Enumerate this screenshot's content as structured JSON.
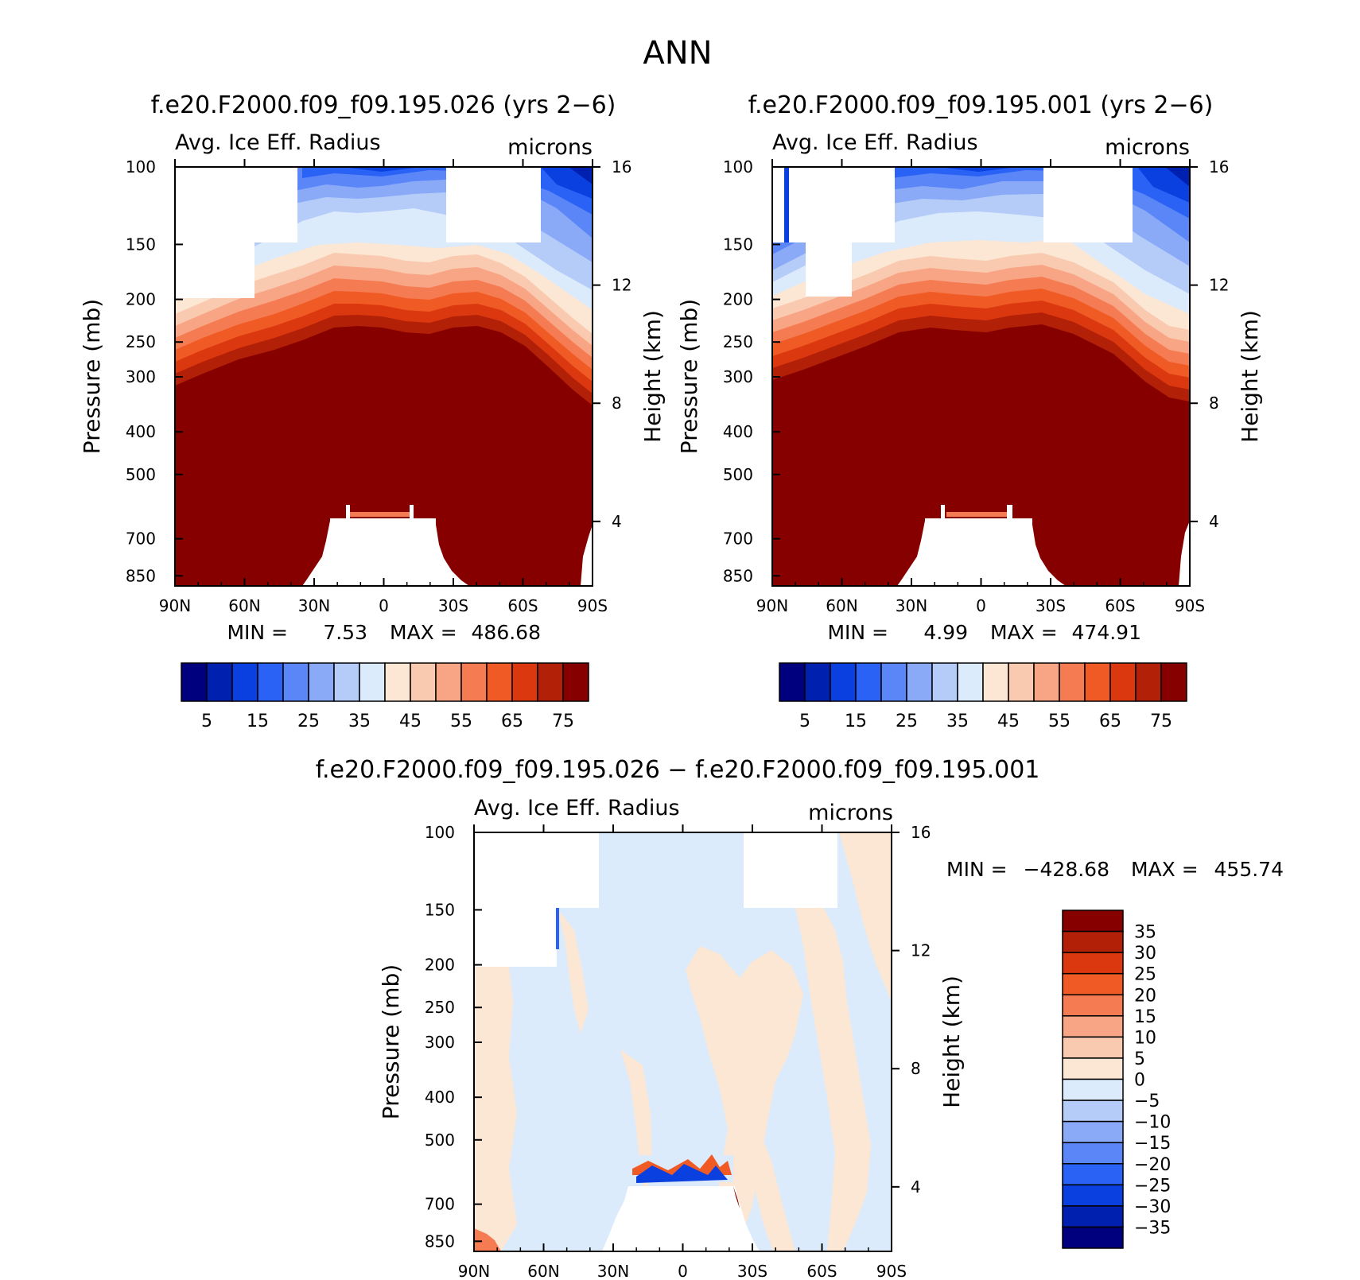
{
  "page_title": "ANN",
  "chart_data": [
    {
      "type": "contour",
      "id": "panel-a",
      "title": "f.e20.F2000.f09_f09.195.026 (yrs 2−6)",
      "variable": "Avg. Ice Eff. Radius",
      "units": "microns",
      "ylabel": "Pressure (mb)",
      "y2label": "Height (km)",
      "x_ticks": [
        "90N",
        "60N",
        "30N",
        "0",
        "30S",
        "60S",
        "90S"
      ],
      "y_ticks": [
        "100",
        "150",
        "200",
        "250",
        "300",
        "400",
        "500",
        "700",
        "850"
      ],
      "y2_ticks": [
        "16",
        "12",
        "8",
        "4"
      ],
      "stats": {
        "min_label": "MIN =",
        "min_value": "7.53",
        "max_label": "MAX =",
        "max_value": "486.68"
      },
      "contour_levels": [
        5,
        10,
        15,
        20,
        25,
        30,
        35,
        40,
        45,
        50,
        55,
        60,
        65,
        70,
        75
      ],
      "colorbar_labels": [
        "5",
        "15",
        "25",
        "35",
        "45",
        "55",
        "65",
        "75"
      ],
      "colors": [
        "#00007F",
        "#0020B0",
        "#0A3FE0",
        "#2A62F5",
        "#5A86F7",
        "#8AAAF8",
        "#B5CCF9",
        "#DCEBFB",
        "#FCE6D4",
        "#FACAB0",
        "#F8A585",
        "#F57C52",
        "#F05A25",
        "#DC3810",
        "#B32008",
        "#870000"
      ]
    },
    {
      "type": "contour",
      "id": "panel-b",
      "title": "f.e20.F2000.f09_f09.195.001 (yrs 2−6)",
      "variable": "Avg. Ice Eff. Radius",
      "units": "microns",
      "ylabel": "Pressure (mb)",
      "y2label": "Height (km)",
      "x_ticks": [
        "90N",
        "60N",
        "30N",
        "0",
        "30S",
        "60S",
        "90S"
      ],
      "y_ticks": [
        "100",
        "150",
        "200",
        "250",
        "300",
        "400",
        "500",
        "700",
        "850"
      ],
      "y2_ticks": [
        "16",
        "12",
        "8",
        "4"
      ],
      "stats": {
        "min_label": "MIN =",
        "min_value": "4.99",
        "max_label": "MAX =",
        "max_value": "474.91"
      },
      "contour_levels": [
        5,
        10,
        15,
        20,
        25,
        30,
        35,
        40,
        45,
        50,
        55,
        60,
        65,
        70,
        75
      ],
      "colorbar_labels": [
        "5",
        "15",
        "25",
        "35",
        "45",
        "55",
        "65",
        "75"
      ],
      "colors": [
        "#00007F",
        "#0020B0",
        "#0A3FE0",
        "#2A62F5",
        "#5A86F7",
        "#8AAAF8",
        "#B5CCF9",
        "#DCEBFB",
        "#FCE6D4",
        "#FACAB0",
        "#F8A585",
        "#F57C52",
        "#F05A25",
        "#DC3810",
        "#B32008",
        "#870000"
      ]
    },
    {
      "type": "contour",
      "id": "panel-diff",
      "title": "f.e20.F2000.f09_f09.195.026 − f.e20.F2000.f09_f09.195.001",
      "variable": "Avg. Ice Eff. Radius",
      "units": "microns",
      "ylabel": "Pressure (mb)",
      "y2label": "Height (km)",
      "x_ticks": [
        "90N",
        "60N",
        "30N",
        "0",
        "30S",
        "60S",
        "90S"
      ],
      "y_ticks": [
        "100",
        "150",
        "200",
        "250",
        "300",
        "400",
        "500",
        "700",
        "850"
      ],
      "y2_ticks": [
        "16",
        "12",
        "8",
        "4"
      ],
      "stats": {
        "min_label": "MIN =",
        "min_value": "−428.68",
        "max_label": "MAX =",
        "max_value": "455.74"
      },
      "contour_levels": [
        -35,
        -30,
        -25,
        -20,
        -15,
        -10,
        -5,
        0,
        5,
        10,
        15,
        20,
        25,
        30,
        35
      ],
      "colorbar_labels": [
        "35",
        "30",
        "25",
        "20",
        "15",
        "10",
        "5",
        "0",
        "−5",
        "−10",
        "−15",
        "−20",
        "−25",
        "−30",
        "−35"
      ],
      "colors": [
        "#870000",
        "#B32008",
        "#DC3810",
        "#F05A25",
        "#F57C52",
        "#F8A585",
        "#FACAB0",
        "#FCE6D4",
        "#DCEBFB",
        "#B5CCF9",
        "#8AAAF8",
        "#5A86F7",
        "#2A62F5",
        "#0A3FE0",
        "#0020B0",
        "#00007F"
      ]
    }
  ]
}
